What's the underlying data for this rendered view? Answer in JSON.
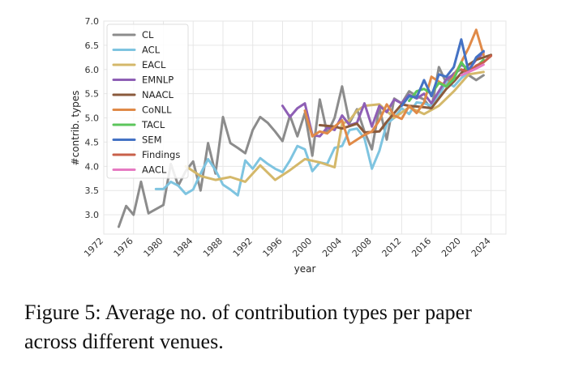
{
  "chart_data": {
    "type": "line",
    "title": "",
    "xlabel": "year",
    "ylabel": "#contrib. types",
    "xlim": [
      1972,
      2026
    ],
    "ylim": [
      2.6,
      7.0
    ],
    "xticks": [
      1972,
      1976,
      1980,
      1984,
      1988,
      1992,
      1996,
      2000,
      2004,
      2008,
      2012,
      2016,
      2020,
      2024
    ],
    "yticks": [
      3.0,
      3.5,
      4.0,
      4.5,
      5.0,
      5.5,
      6.0,
      6.5,
      7.0
    ],
    "grid": true,
    "legend_position": "top-left",
    "series": [
      {
        "name": "CL",
        "color": "#8c8c8c",
        "x": [
          1974,
          1975,
          1976,
          1977,
          1978,
          1980,
          1981,
          1982,
          1983,
          1984,
          1985,
          1986,
          1987,
          1988,
          1989,
          1990,
          1991,
          1992,
          1993,
          1994,
          1995,
          1996,
          1997,
          1998,
          1999,
          2000,
          2001,
          2002,
          2003,
          2004,
          2005,
          2006,
          2007,
          2008,
          2009,
          2010,
          2011,
          2012,
          2013,
          2014,
          2015,
          2016,
          2017,
          2018,
          2019,
          2020,
          2021,
          2022,
          2023
        ],
        "y": [
          2.75,
          3.18,
          3.0,
          3.68,
          3.03,
          3.2,
          4.05,
          3.6,
          3.9,
          4.1,
          3.5,
          4.48,
          3.85,
          5.02,
          4.48,
          4.38,
          4.27,
          4.75,
          5.02,
          4.9,
          4.72,
          4.52,
          5.05,
          4.62,
          5.1,
          4.22,
          5.38,
          4.68,
          5.0,
          5.65,
          4.9,
          5.18,
          4.72,
          4.35,
          5.22,
          4.55,
          5.4,
          5.3,
          5.55,
          5.45,
          5.38,
          5.18,
          6.05,
          5.72,
          5.92,
          6.0,
          5.88,
          5.78,
          5.88
        ]
      },
      {
        "name": "ACL",
        "color": "#7ec4e0",
        "x": [
          1979,
          1980,
          1981,
          1982,
          1983,
          1984,
          1985,
          1986,
          1987,
          1988,
          1989,
          1990,
          1991,
          1992,
          1993,
          1994,
          1995,
          1996,
          1997,
          1998,
          1999,
          2000,
          2001,
          2002,
          2003,
          2004,
          2005,
          2006,
          2007,
          2008,
          2009,
          2010,
          2011,
          2012,
          2013,
          2014,
          2015,
          2016,
          2017,
          2018,
          2019,
          2020,
          2021,
          2022,
          2023
        ],
        "y": [
          3.53,
          3.53,
          3.68,
          3.6,
          3.43,
          3.52,
          3.85,
          4.15,
          3.92,
          3.62,
          3.52,
          3.4,
          4.12,
          3.95,
          4.17,
          4.05,
          3.95,
          3.88,
          4.12,
          4.42,
          4.35,
          3.9,
          4.08,
          4.05,
          4.38,
          4.42,
          4.75,
          4.78,
          4.58,
          3.95,
          4.32,
          4.88,
          5.0,
          5.2,
          5.08,
          5.32,
          5.3,
          5.25,
          5.45,
          5.75,
          5.65,
          5.82,
          5.95,
          6.05,
          6.18
        ]
      },
      {
        "name": "EACL",
        "color": "#d4b86a",
        "x": [
          1983,
          1985,
          1987,
          1989,
          1991,
          1993,
          1995,
          1997,
          1999,
          2001,
          2003,
          2004,
          2005,
          2006,
          2007,
          2009,
          2011,
          2013,
          2015,
          2017,
          2019,
          2021,
          2023
        ],
        "y": [
          4.0,
          3.8,
          3.72,
          3.78,
          3.68,
          4.02,
          3.72,
          3.92,
          4.15,
          4.08,
          3.98,
          4.88,
          4.95,
          5.15,
          5.25,
          5.28,
          5.0,
          5.22,
          5.08,
          5.25,
          5.55,
          5.9,
          5.95
        ]
      },
      {
        "name": "EMNLP",
        "color": "#8e5fb5",
        "x": [
          1996,
          1997,
          1998,
          1999,
          2000,
          2001,
          2002,
          2003,
          2004,
          2005,
          2006,
          2007,
          2008,
          2009,
          2010,
          2011,
          2012,
          2013,
          2014,
          2015,
          2016,
          2017,
          2018,
          2019,
          2020,
          2021,
          2022,
          2023
        ],
        "y": [
          5.25,
          5.02,
          5.2,
          5.3,
          4.65,
          4.62,
          4.8,
          4.75,
          5.05,
          4.85,
          4.9,
          5.3,
          4.82,
          5.25,
          5.12,
          5.38,
          5.3,
          5.48,
          5.4,
          5.5,
          5.3,
          5.55,
          5.8,
          5.9,
          6.1,
          6.0,
          6.2,
          6.35
        ]
      },
      {
        "name": "NAACL",
        "color": "#8a5a3c",
        "x": [
          2001,
          2003,
          2004,
          2006,
          2007,
          2009,
          2010,
          2012,
          2013,
          2015,
          2016,
          2018,
          2019,
          2021,
          2022,
          2024
        ],
        "y": [
          4.85,
          4.82,
          4.78,
          4.88,
          4.7,
          4.72,
          4.92,
          5.28,
          5.25,
          5.22,
          5.2,
          5.6,
          5.75,
          6.1,
          6.2,
          6.3
        ]
      },
      {
        "name": "CoNLL",
        "color": "#e08a48",
        "x": [
          1999,
          2000,
          2001,
          2002,
          2003,
          2004,
          2005,
          2006,
          2007,
          2008,
          2009,
          2010,
          2011,
          2012,
          2013,
          2014,
          2015,
          2016,
          2017,
          2018,
          2019,
          2020,
          2021,
          2022,
          2023
        ],
        "y": [
          5.15,
          4.62,
          4.72,
          4.68,
          4.82,
          4.95,
          4.45,
          4.55,
          4.65,
          4.72,
          4.95,
          5.28,
          5.05,
          4.98,
          5.25,
          5.1,
          5.32,
          5.85,
          5.75,
          5.65,
          5.85,
          6.15,
          6.45,
          6.82,
          6.3
        ]
      },
      {
        "name": "TACL",
        "color": "#5cc65c",
        "x": [
          2013,
          2014,
          2015,
          2016,
          2017,
          2018,
          2019,
          2020,
          2021,
          2022,
          2023
        ],
        "y": [
          5.35,
          5.55,
          5.6,
          5.5,
          5.72,
          5.65,
          5.8,
          6.15,
          5.95,
          6.05,
          6.2
        ]
      },
      {
        "name": "SEM",
        "color": "#4472c4",
        "x": [
          2012,
          2013,
          2014,
          2015,
          2016,
          2017,
          2018,
          2019,
          2020,
          2021,
          2022,
          2023
        ],
        "y": [
          5.25,
          5.45,
          5.42,
          5.78,
          5.45,
          5.9,
          5.85,
          6.05,
          6.62,
          5.95,
          6.25,
          6.38
        ]
      },
      {
        "name": "Findings",
        "color": "#c8604a",
        "x": [
          2020,
          2021,
          2022,
          2023,
          2024
        ],
        "y": [
          6.0,
          5.95,
          6.08,
          6.15,
          6.28
        ]
      },
      {
        "name": "AACL",
        "color": "#e67ac2",
        "x": [
          2020,
          2021,
          2022,
          2023
        ],
        "y": [
          5.88,
          5.95,
          6.02,
          6.1
        ]
      }
    ]
  },
  "caption": {
    "line1": "Figure 5: Average no. of contribution types per paper",
    "line2": "across different venues."
  }
}
